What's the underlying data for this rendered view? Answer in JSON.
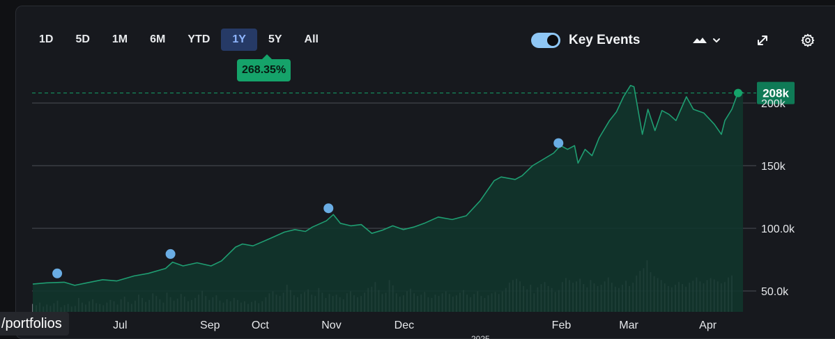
{
  "ranges": [
    "1D",
    "5D",
    "1M",
    "6M",
    "YTD",
    "1Y",
    "5Y",
    "All"
  ],
  "active_range": "1Y",
  "change_badge": "268.35%",
  "key_events": {
    "label": "Key Events",
    "enabled": true
  },
  "icons": {
    "chart_type": "mountain-chart-icon",
    "chart_type_menu": "chevron-down-icon",
    "expand": "expand-icon",
    "settings": "gear-icon"
  },
  "portfolio_tooltip": "/portfolios",
  "colors": {
    "line": "#1f9e72",
    "area": "#11352c",
    "badge": "#15a36a",
    "event": "#6aade4",
    "volume": "#8c8f96",
    "grid": "#4b4e55",
    "active_range_bg": "#263a66"
  },
  "chart_data": {
    "type": "area",
    "ylim": [
      40000,
      215000
    ],
    "y_ticks": [
      {
        "value": 50000,
        "label": "50.0k"
      },
      {
        "value": 100000,
        "label": "100.0k"
      },
      {
        "value": 150000,
        "label": "150k"
      },
      {
        "value": 200000,
        "label": "200k"
      }
    ],
    "last_price_label": "208k",
    "last_price": 208000,
    "x_labels": [
      {
        "label": "Jul",
        "t": 0.125
      },
      {
        "label": "Sep",
        "t": 0.2535
      },
      {
        "label": "Oct",
        "t": 0.3254
      },
      {
        "label": "Nov",
        "t": 0.4272
      },
      {
        "label": "Dec",
        "t": 0.5313
      },
      {
        "label": "Feb",
        "t": 0.7562
      },
      {
        "label": "Mar",
        "t": 0.8525
      },
      {
        "label": "Apr",
        "t": 0.9657
      }
    ],
    "series": [
      {
        "points": [
          [
            0.0,
            55500
          ],
          [
            0.02,
            56500
          ],
          [
            0.045,
            57000
          ],
          [
            0.06,
            54500
          ],
          [
            0.08,
            56800
          ],
          [
            0.1,
            59000
          ],
          [
            0.12,
            58000
          ],
          [
            0.145,
            62000
          ],
          [
            0.165,
            64000
          ],
          [
            0.19,
            68000
          ],
          [
            0.2,
            73000
          ],
          [
            0.215,
            70000
          ],
          [
            0.235,
            72500
          ],
          [
            0.255,
            70000
          ],
          [
            0.27,
            74000
          ],
          [
            0.29,
            85000
          ],
          [
            0.3,
            87500
          ],
          [
            0.315,
            86000
          ],
          [
            0.34,
            92000
          ],
          [
            0.36,
            97000
          ],
          [
            0.375,
            99000
          ],
          [
            0.39,
            97500
          ],
          [
            0.4,
            101000
          ],
          [
            0.42,
            106000
          ],
          [
            0.43,
            111000
          ],
          [
            0.44,
            104000
          ],
          [
            0.455,
            102000
          ],
          [
            0.47,
            103000
          ],
          [
            0.485,
            96000
          ],
          [
            0.5,
            98500
          ],
          [
            0.515,
            102000
          ],
          [
            0.53,
            99000
          ],
          [
            0.545,
            101000
          ],
          [
            0.56,
            104000
          ],
          [
            0.58,
            109000
          ],
          [
            0.6,
            107000
          ],
          [
            0.62,
            110000
          ],
          [
            0.64,
            122000
          ],
          [
            0.66,
            138000
          ],
          [
            0.67,
            141000
          ],
          [
            0.69,
            139000
          ],
          [
            0.7,
            142000
          ],
          [
            0.715,
            150000
          ],
          [
            0.73,
            155000
          ],
          [
            0.745,
            160000
          ],
          [
            0.755,
            166000
          ],
          [
            0.765,
            163000
          ],
          [
            0.775,
            166000
          ],
          [
            0.78,
            152000
          ],
          [
            0.79,
            163000
          ],
          [
            0.8,
            158000
          ],
          [
            0.81,
            172000
          ],
          [
            0.825,
            186000
          ],
          [
            0.835,
            193000
          ],
          [
            0.845,
            205000
          ],
          [
            0.855,
            214000
          ],
          [
            0.86,
            213000
          ],
          [
            0.872,
            175000
          ],
          [
            0.88,
            195000
          ],
          [
            0.89,
            178000
          ],
          [
            0.9,
            194000
          ],
          [
            0.91,
            191000
          ],
          [
            0.92,
            186000
          ],
          [
            0.935,
            205000
          ],
          [
            0.945,
            195000
          ],
          [
            0.96,
            192000
          ],
          [
            0.975,
            183000
          ],
          [
            0.985,
            175000
          ],
          [
            0.99,
            186000
          ],
          [
            1.0,
            195000
          ],
          [
            1.01,
            210000
          ],
          [
            1.016,
            208000
          ]
        ]
      }
    ],
    "key_events": [
      {
        "t": 0.035,
        "value": 64000
      },
      {
        "t": 0.197,
        "value": 79500
      },
      {
        "t": 0.423,
        "value": 116000
      },
      {
        "t": 0.752,
        "value": 168000
      }
    ],
    "volume": {
      "ylim": [
        0,
        100
      ],
      "values": [
        12,
        10,
        14,
        8,
        11,
        9,
        13,
        17,
        7,
        10,
        12,
        8,
        9,
        21,
        14,
        11,
        16,
        19,
        13,
        12,
        10,
        14,
        18,
        16,
        11,
        19,
        23,
        15,
        12,
        17,
        26,
        21,
        15,
        18,
        28,
        24,
        19,
        14,
        29,
        22,
        17,
        20,
        27,
        23,
        16,
        18,
        21,
        26,
        32,
        24,
        18,
        22,
        25,
        17,
        14,
        19,
        16,
        21,
        18,
        14,
        16,
        12,
        15,
        17,
        13,
        16,
        22,
        28,
        31,
        26,
        24,
        29,
        41,
        33,
        25,
        22,
        27,
        30,
        34,
        26,
        24,
        36,
        29,
        21,
        27,
        24,
        26,
        22,
        19,
        28,
        31,
        25,
        22,
        24,
        29,
        36,
        38,
        45,
        33,
        27,
        29,
        48,
        40,
        28,
        23,
        25,
        31,
        35,
        28,
        24,
        26,
        30,
        22,
        21,
        26,
        24,
        28,
        31,
        27,
        23,
        25,
        29,
        33,
        26,
        22,
        27,
        31,
        24,
        21,
        25,
        28,
        30,
        27,
        31,
        36,
        44,
        48,
        50,
        46,
        39,
        34,
        41,
        28,
        37,
        42,
        45,
        39,
        36,
        30,
        33,
        45,
        51,
        48,
        44,
        46,
        50,
        42,
        37,
        48,
        43,
        39,
        41,
        46,
        52,
        44,
        38,
        36,
        41,
        47,
        39,
        44,
        55,
        62,
        66,
        78,
        60,
        54,
        51,
        48,
        43,
        39,
        37,
        41,
        45,
        42,
        38,
        44,
        47,
        52,
        46,
        43,
        48,
        51,
        49,
        46,
        43,
        45,
        52,
        55
      ]
    }
  }
}
